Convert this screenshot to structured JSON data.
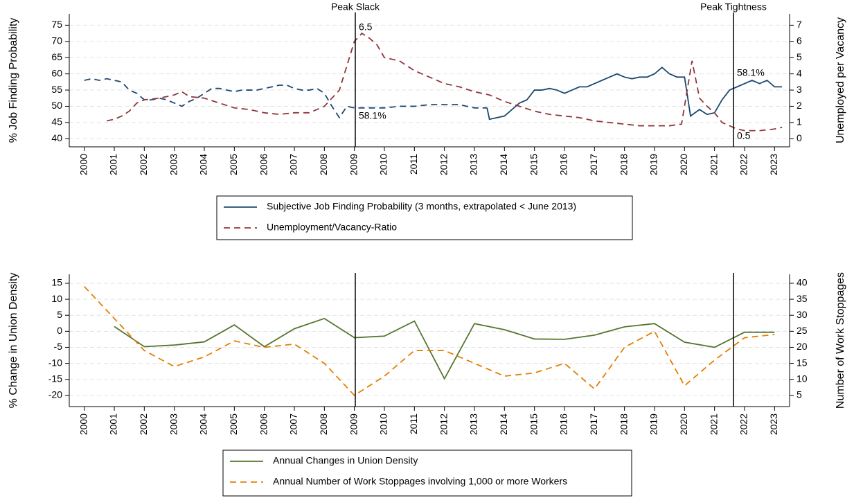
{
  "chart_data": [
    {
      "type": "line",
      "ylabel": "% Job Finding Probability",
      "y2label": "Unemployed per Vacancy",
      "xlim": [
        1999.5,
        2023.5
      ],
      "xticks": [
        2000,
        2001,
        2002,
        2003,
        2004,
        2005,
        2006,
        2007,
        2008,
        2009,
        2010,
        2011,
        2012,
        2013,
        2014,
        2015,
        2016,
        2017,
        2018,
        2019,
        2020,
        2021,
        2022,
        2023
      ],
      "ylim": [
        37.5,
        78.5
      ],
      "yticks": [
        40,
        45,
        50,
        55,
        60,
        65,
        70,
        75
      ],
      "y2lim": [
        -0.5,
        7.7
      ],
      "y2ticks": [
        0,
        1,
        2,
        3,
        4,
        5,
        6,
        7
      ],
      "grid": true,
      "vlines": [
        {
          "x": 2009.03,
          "label": "Peak Slack",
          "annotations": [
            6.5,
            {
              "value": 58.1,
              "label": "58.1%"
            }
          ]
        },
        {
          "x": 2021.63,
          "label": "Peak Tightness",
          "annotations": [
            {
              "value": 58.1,
              "label": "58.1%"
            },
            0.5
          ]
        }
      ],
      "series": [
        {
          "name": "Subjective Job Finding Probability (3 months, extrapolated < June 2013)",
          "color": "#1a476f",
          "axis": "y",
          "dashed_before": 2013.42,
          "x": [
            2000,
            2000.25,
            2000.5,
            2000.75,
            2001,
            2001.25,
            2001.5,
            2001.75,
            2002,
            2002.25,
            2002.5,
            2002.75,
            2003,
            2003.25,
            2003.5,
            2003.75,
            2004,
            2004.25,
            2004.5,
            2004.75,
            2005,
            2005.25,
            2005.5,
            2005.75,
            2006,
            2006.25,
            2006.5,
            2006.75,
            2007,
            2007.25,
            2007.5,
            2007.75,
            2008,
            2008.25,
            2008.5,
            2008.75,
            2009,
            2009.5,
            2010,
            2010.5,
            2011,
            2011.5,
            2012,
            2012.5,
            2013,
            2013.42,
            2013.5,
            2013.75,
            2014,
            2014.25,
            2014.5,
            2014.75,
            2015,
            2015.25,
            2015.5,
            2015.75,
            2016,
            2016.25,
            2016.5,
            2016.75,
            2017,
            2017.25,
            2017.5,
            2017.75,
            2018,
            2018.25,
            2018.5,
            2018.75,
            2019,
            2019.25,
            2019.5,
            2019.75,
            2020,
            2020.2,
            2020.5,
            2020.75,
            2021,
            2021.25,
            2021.5,
            2021.75,
            2022,
            2022.25,
            2022.5,
            2022.75,
            2023,
            2023.25
          ],
          "values": [
            58,
            58.5,
            58,
            58.5,
            58,
            57.5,
            55,
            54,
            52,
            52,
            52.5,
            52,
            51,
            50,
            51.5,
            52.5,
            54,
            55.5,
            55.5,
            55,
            54.5,
            55,
            55,
            55,
            55.5,
            56,
            56.5,
            56.5,
            55.5,
            55,
            55,
            55.5,
            54,
            50,
            46.5,
            50,
            49.5,
            49.5,
            49.5,
            50,
            50,
            50.5,
            50.5,
            50.5,
            49.5,
            49.5,
            46,
            46.5,
            47,
            49,
            51,
            52,
            55,
            55,
            55.5,
            55,
            54,
            55,
            56,
            56,
            57,
            58,
            59,
            60,
            59,
            58.5,
            59,
            59,
            60,
            62,
            60,
            59,
            59,
            47,
            49,
            47.5,
            48,
            52,
            55,
            56,
            57,
            58,
            57,
            58,
            56,
            56
          ]
        },
        {
          "name": "Unemployment/Vacancy-Ratio",
          "color": "#90353b",
          "axis": "y2",
          "dash": true,
          "x": [
            2000.75,
            2001,
            2001.25,
            2001.5,
            2001.75,
            2002,
            2002.5,
            2003,
            2003.25,
            2003.5,
            2004,
            2004.5,
            2005,
            2005.5,
            2006,
            2006.5,
            2007,
            2007.5,
            2008,
            2008.5,
            2008.75,
            2009,
            2009.25,
            2009.5,
            2009.75,
            2010,
            2010.5,
            2011,
            2011.5,
            2012,
            2012.5,
            2013,
            2013.5,
            2014,
            2014.5,
            2015,
            2015.5,
            2016,
            2016.5,
            2017,
            2017.5,
            2018,
            2018.5,
            2019,
            2019.5,
            2019.9,
            2020.25,
            2020.5,
            2020.75,
            2021,
            2021.25,
            2021.5,
            2021.75,
            2022,
            2022.5,
            2023,
            2023.25
          ],
          "values": [
            1.1,
            1.2,
            1.4,
            1.7,
            2.2,
            2.4,
            2.5,
            2.7,
            2.9,
            2.6,
            2.5,
            2.2,
            1.9,
            1.8,
            1.6,
            1.5,
            1.6,
            1.6,
            2.0,
            3.0,
            4.5,
            6.0,
            6.5,
            6.2,
            5.8,
            5.0,
            4.8,
            4.2,
            3.8,
            3.4,
            3.2,
            2.9,
            2.7,
            2.3,
            2.0,
            1.7,
            1.5,
            1.4,
            1.3,
            1.1,
            1.0,
            0.9,
            0.8,
            0.8,
            0.8,
            0.9,
            4.8,
            2.5,
            2.0,
            1.6,
            1.0,
            0.8,
            0.6,
            0.5,
            0.5,
            0.6,
            0.7
          ]
        }
      ]
    },
    {
      "type": "line",
      "ylabel": "% Change in Union Density",
      "y2label": "Number of Work Stoppages",
      "xlim": [
        1999.5,
        2023.5
      ],
      "xticks": [
        2000,
        2001,
        2002,
        2003,
        2004,
        2005,
        2006,
        2007,
        2008,
        2009,
        2010,
        2011,
        2012,
        2013,
        2014,
        2015,
        2016,
        2017,
        2018,
        2019,
        2020,
        2021,
        2022,
        2023
      ],
      "ylim": [
        -23.5,
        17.8
      ],
      "yticks": [
        -20,
        -15,
        -10,
        -5,
        0,
        5,
        10,
        15
      ],
      "y2lim": [
        1.5,
        42.8
      ],
      "y2ticks": [
        5,
        10,
        15,
        20,
        25,
        30,
        35,
        40
      ],
      "grid": true,
      "vlines": [
        {
          "x": 2009.03
        },
        {
          "x": 2021.63
        }
      ],
      "series": [
        {
          "name": "Annual Changes in Union Density",
          "color": "#55752f",
          "axis": "y",
          "x": [
            2001,
            2002,
            2003,
            2004,
            2005,
            2006,
            2007,
            2008,
            2009,
            2010,
            2011,
            2012,
            2013,
            2014,
            2015,
            2016,
            2017,
            2018,
            2019,
            2020,
            2021,
            2022,
            2023
          ],
          "values": [
            1.5,
            -4.8,
            -4.3,
            -3.3,
            2,
            -4.8,
            0.8,
            4,
            -2,
            -1.5,
            3.2,
            -14.8,
            2.4,
            0.5,
            -2.4,
            -2.5,
            -1.2,
            1.4,
            2.4,
            -3.4,
            -5,
            -0.3,
            -0.3
          ]
        },
        {
          "name": "Annual Number of Work Stoppages involving 1,000 or more Workers",
          "color": "#e37e00",
          "axis": "y2",
          "dash": true,
          "x": [
            2000,
            2001,
            2002,
            2003,
            2004,
            2005,
            2006,
            2007,
            2008,
            2009,
            2010,
            2011,
            2012,
            2013,
            2014,
            2015,
            2016,
            2017,
            2018,
            2019,
            2020,
            2021,
            2022,
            2023
          ],
          "values": [
            39,
            29,
            19,
            14,
            17,
            22,
            20,
            21,
            15,
            5,
            11,
            19,
            19,
            15,
            11,
            12,
            15,
            7,
            20,
            25,
            8,
            16,
            23,
            24
          ]
        }
      ]
    }
  ]
}
